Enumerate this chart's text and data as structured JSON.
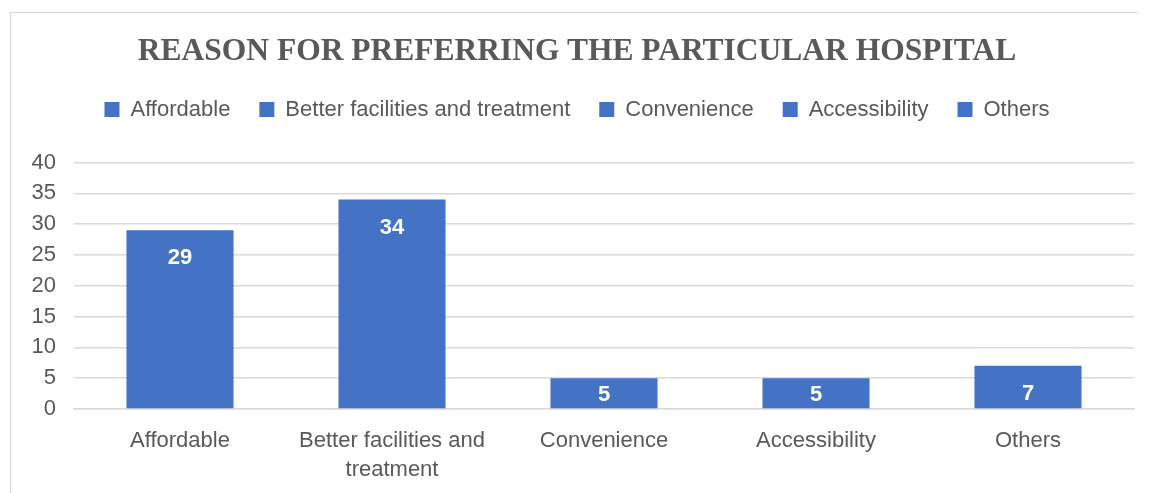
{
  "chart_data": {
    "type": "bar",
    "title": "REASON FOR PREFERRING THE PARTICULAR HOSPITAL",
    "categories": [
      "Affordable",
      "Better facilities and treatment",
      "Convenience",
      "Accessibility",
      "Others"
    ],
    "series": [
      {
        "name": "Affordable",
        "color": "#4472c4",
        "values": [
          29,
          null,
          null,
          null,
          null
        ]
      },
      {
        "name": "Better facilities and treatment",
        "color": "#4472c4",
        "values": [
          null,
          34,
          null,
          null,
          null
        ]
      },
      {
        "name": "Convenience",
        "color": "#4472c4",
        "values": [
          null,
          null,
          5,
          null,
          null
        ]
      },
      {
        "name": "Accessibility",
        "color": "#4472c4",
        "values": [
          null,
          null,
          null,
          5,
          null
        ]
      },
      {
        "name": "Others",
        "color": "#4472c4",
        "values": [
          null,
          null,
          null,
          null,
          7
        ]
      }
    ],
    "ylim": [
      0,
      40
    ],
    "yticks": [
      0,
      5,
      10,
      15,
      20,
      25,
      30,
      35,
      40
    ],
    "grid": "y",
    "legend": "top",
    "data_labels": true
  }
}
